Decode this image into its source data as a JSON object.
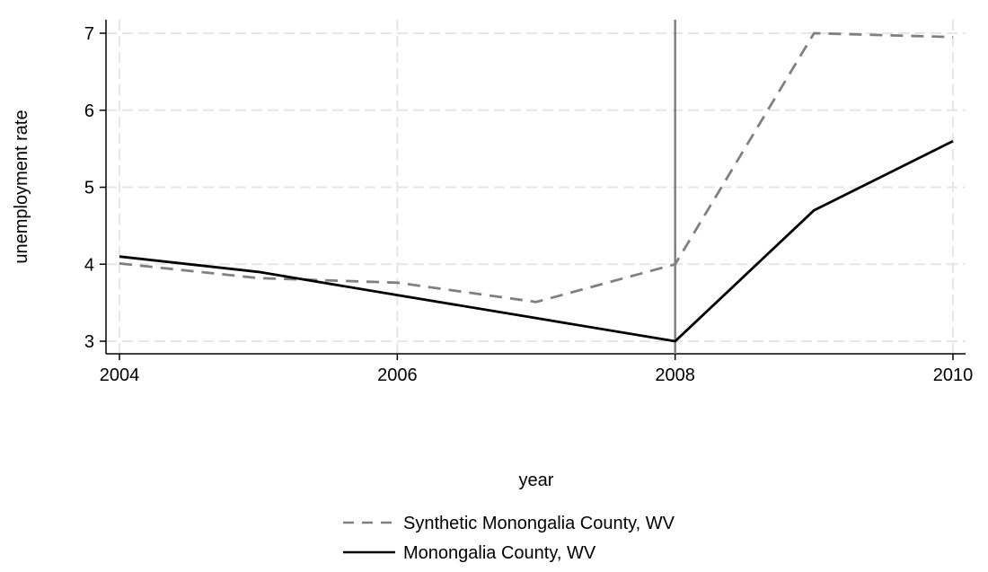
{
  "chart_data": {
    "type": "line",
    "title": "",
    "xlabel": "year",
    "ylabel": "unemployment rate",
    "xlim": [
      2004,
      2010
    ],
    "ylim": [
      3,
      7
    ],
    "x_ticks": [
      2004,
      2006,
      2008,
      2010
    ],
    "y_ticks": [
      3,
      4,
      5,
      6,
      7
    ],
    "grid": true,
    "legend_position": "bottom",
    "x": [
      2004,
      2005,
      2006,
      2007,
      2008,
      2009,
      2010
    ],
    "series": [
      {
        "name": "Synthetic Monongalia County, WV",
        "style": "dashed",
        "color": "#808080",
        "values": [
          4.01,
          3.82,
          3.76,
          3.51,
          4.0,
          7.0,
          6.95
        ]
      },
      {
        "name": "Monongalia County, WV",
        "style": "solid",
        "color": "#000000",
        "values": [
          4.1,
          3.9,
          3.6,
          3.3,
          3.0,
          4.7,
          5.6
        ]
      }
    ],
    "reference_line": {
      "x": 2008,
      "color": "#808080"
    }
  }
}
